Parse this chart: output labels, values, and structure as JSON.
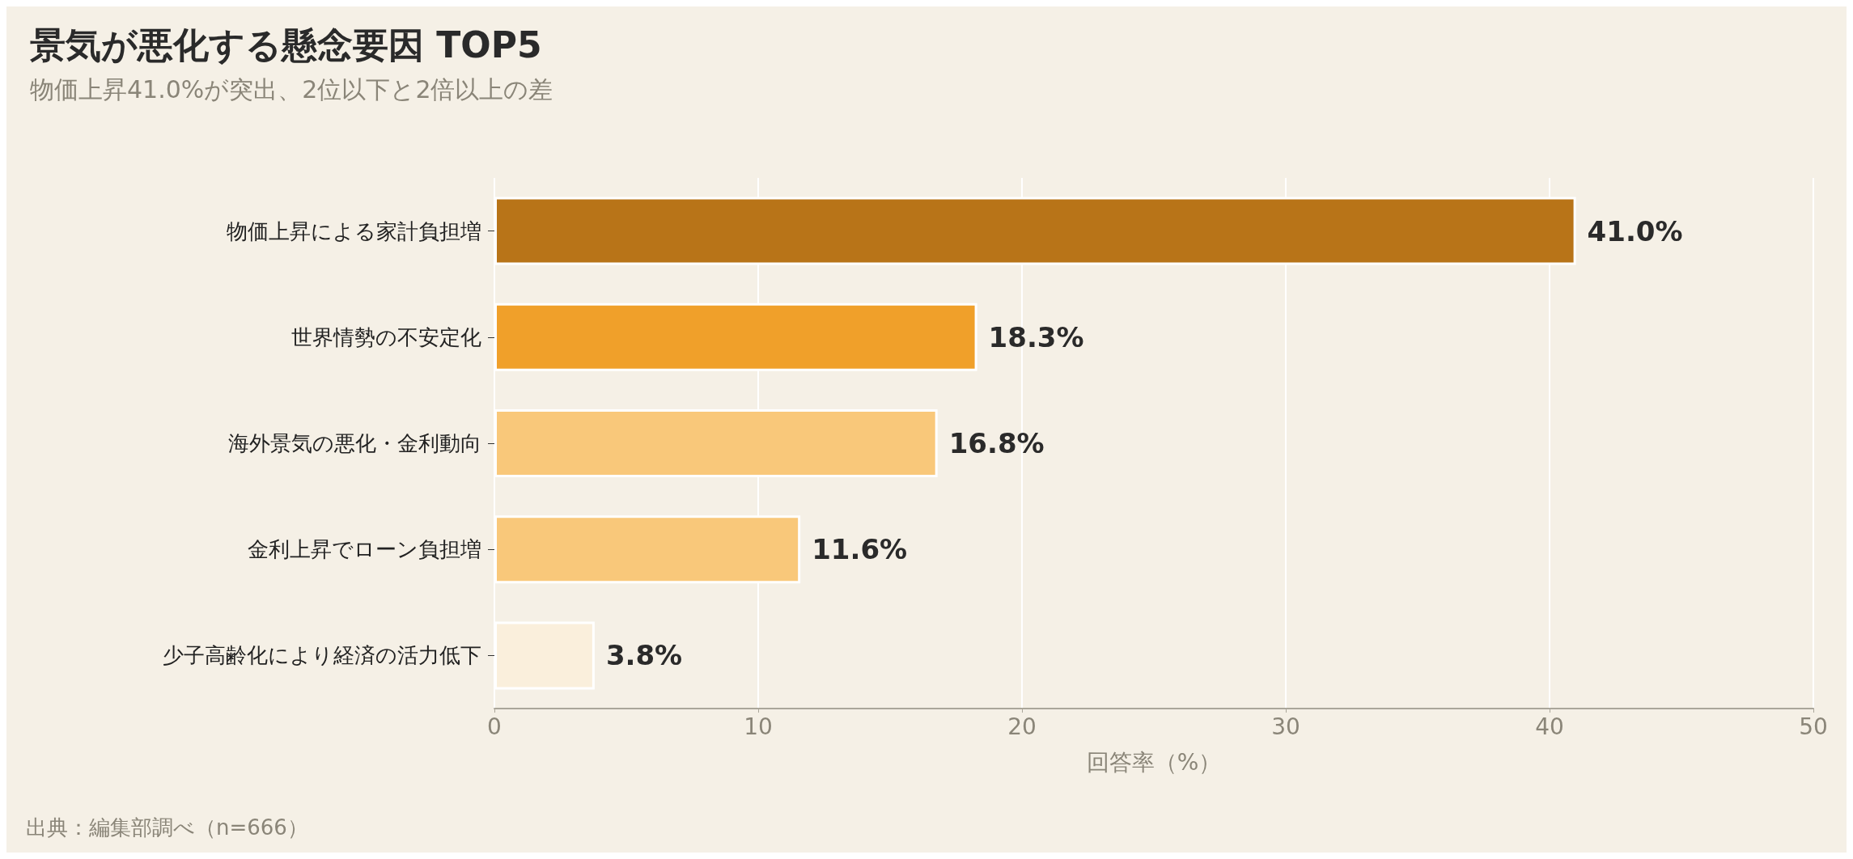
{
  "chart_data": {
    "type": "bar",
    "orientation": "horizontal",
    "title": "景気が悪化する懸念要因 TOP5",
    "subtitle": "物価上昇41.0%が突出、2位以下と2倍以上の差",
    "xlabel": "回答率（%）",
    "categories": [
      "物価上昇による家計負担増",
      "世界情勢の不安定化",
      "海外景気の悪化・金利動向",
      "金利上昇でローン負担増",
      "少子高齢化により経済の活力低下"
    ],
    "values": [
      41.0,
      18.3,
      16.8,
      11.6,
      3.8
    ],
    "colors": [
      "#b87418",
      "#f0a02a",
      "#f9c87a",
      "#f9c87a",
      "#faefdc"
    ],
    "value_labels": [
      "41.0%",
      "18.3%",
      "16.8%",
      "11.6%",
      "3.8%"
    ],
    "xlim": [
      0,
      50
    ],
    "xticks": [
      0,
      10,
      20,
      30,
      40,
      50
    ],
    "grid": "x",
    "annotations": [
      "出典：編集部調べ（n=666）"
    ]
  }
}
